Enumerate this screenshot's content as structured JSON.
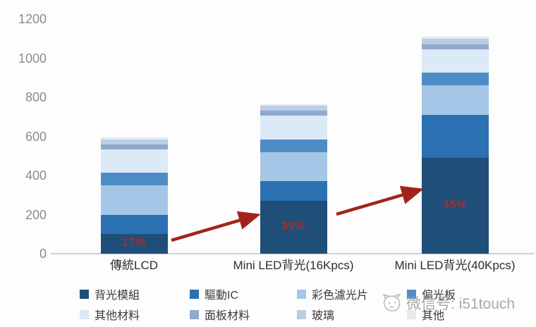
{
  "watermark": {
    "icon": "cat-face-icon",
    "text": "微信号: i51touch"
  },
  "chart_data": {
    "type": "bar",
    "stacked": true,
    "title": "",
    "xlabel": "",
    "ylabel": "",
    "categories": [
      "傳統LCD",
      "Mini LED背光(16Kpcs)",
      "Mini LED背光(40Kpcs)"
    ],
    "series": [
      {
        "name": "背光模組",
        "color": "#1F4E79",
        "values": [
          100,
          270,
          490
        ]
      },
      {
        "name": "驅動IC",
        "color": "#2B71B2",
        "values": [
          100,
          100,
          220
        ]
      },
      {
        "name": "彩色濾光片",
        "color": "#A5C6E6",
        "values": [
          150,
          150,
          150
        ]
      },
      {
        "name": "偏光板",
        "color": "#4E8CC6",
        "values": [
          65,
          65,
          65
        ]
      },
      {
        "name": "其他材料",
        "color": "#DCE9F6",
        "values": [
          120,
          120,
          120
        ]
      },
      {
        "name": "面板材料",
        "color": "#8FA9CC",
        "values": [
          25,
          25,
          25
        ]
      },
      {
        "name": "玻璃",
        "color": "#B9CDE4",
        "values": [
          25,
          25,
          30
        ]
      },
      {
        "name": "其他",
        "color": "#E6EAEF",
        "values": [
          10,
          10,
          10
        ]
      }
    ],
    "totals": [
      595,
      765,
      1110
    ],
    "bar_labels": [
      {
        "bar": 0,
        "text": "17%"
      },
      {
        "bar": 1,
        "text": "35%"
      },
      {
        "bar": 2,
        "text": "45%"
      }
    ],
    "label_color": "#AF2B26",
    "yticks": [
      0,
      200,
      400,
      600,
      800,
      1000,
      1200
    ],
    "ylim": [
      0,
      1200
    ],
    "grid": false,
    "legend_position": "bottom",
    "legend_rows": 2,
    "arrows": [
      {
        "from": [
          243,
          341
        ],
        "to": [
          359,
          307
        ]
      },
      {
        "from": [
          477,
          304
        ],
        "to": [
          590,
          271
        ]
      }
    ],
    "arrow_color": "#A3231C"
  }
}
